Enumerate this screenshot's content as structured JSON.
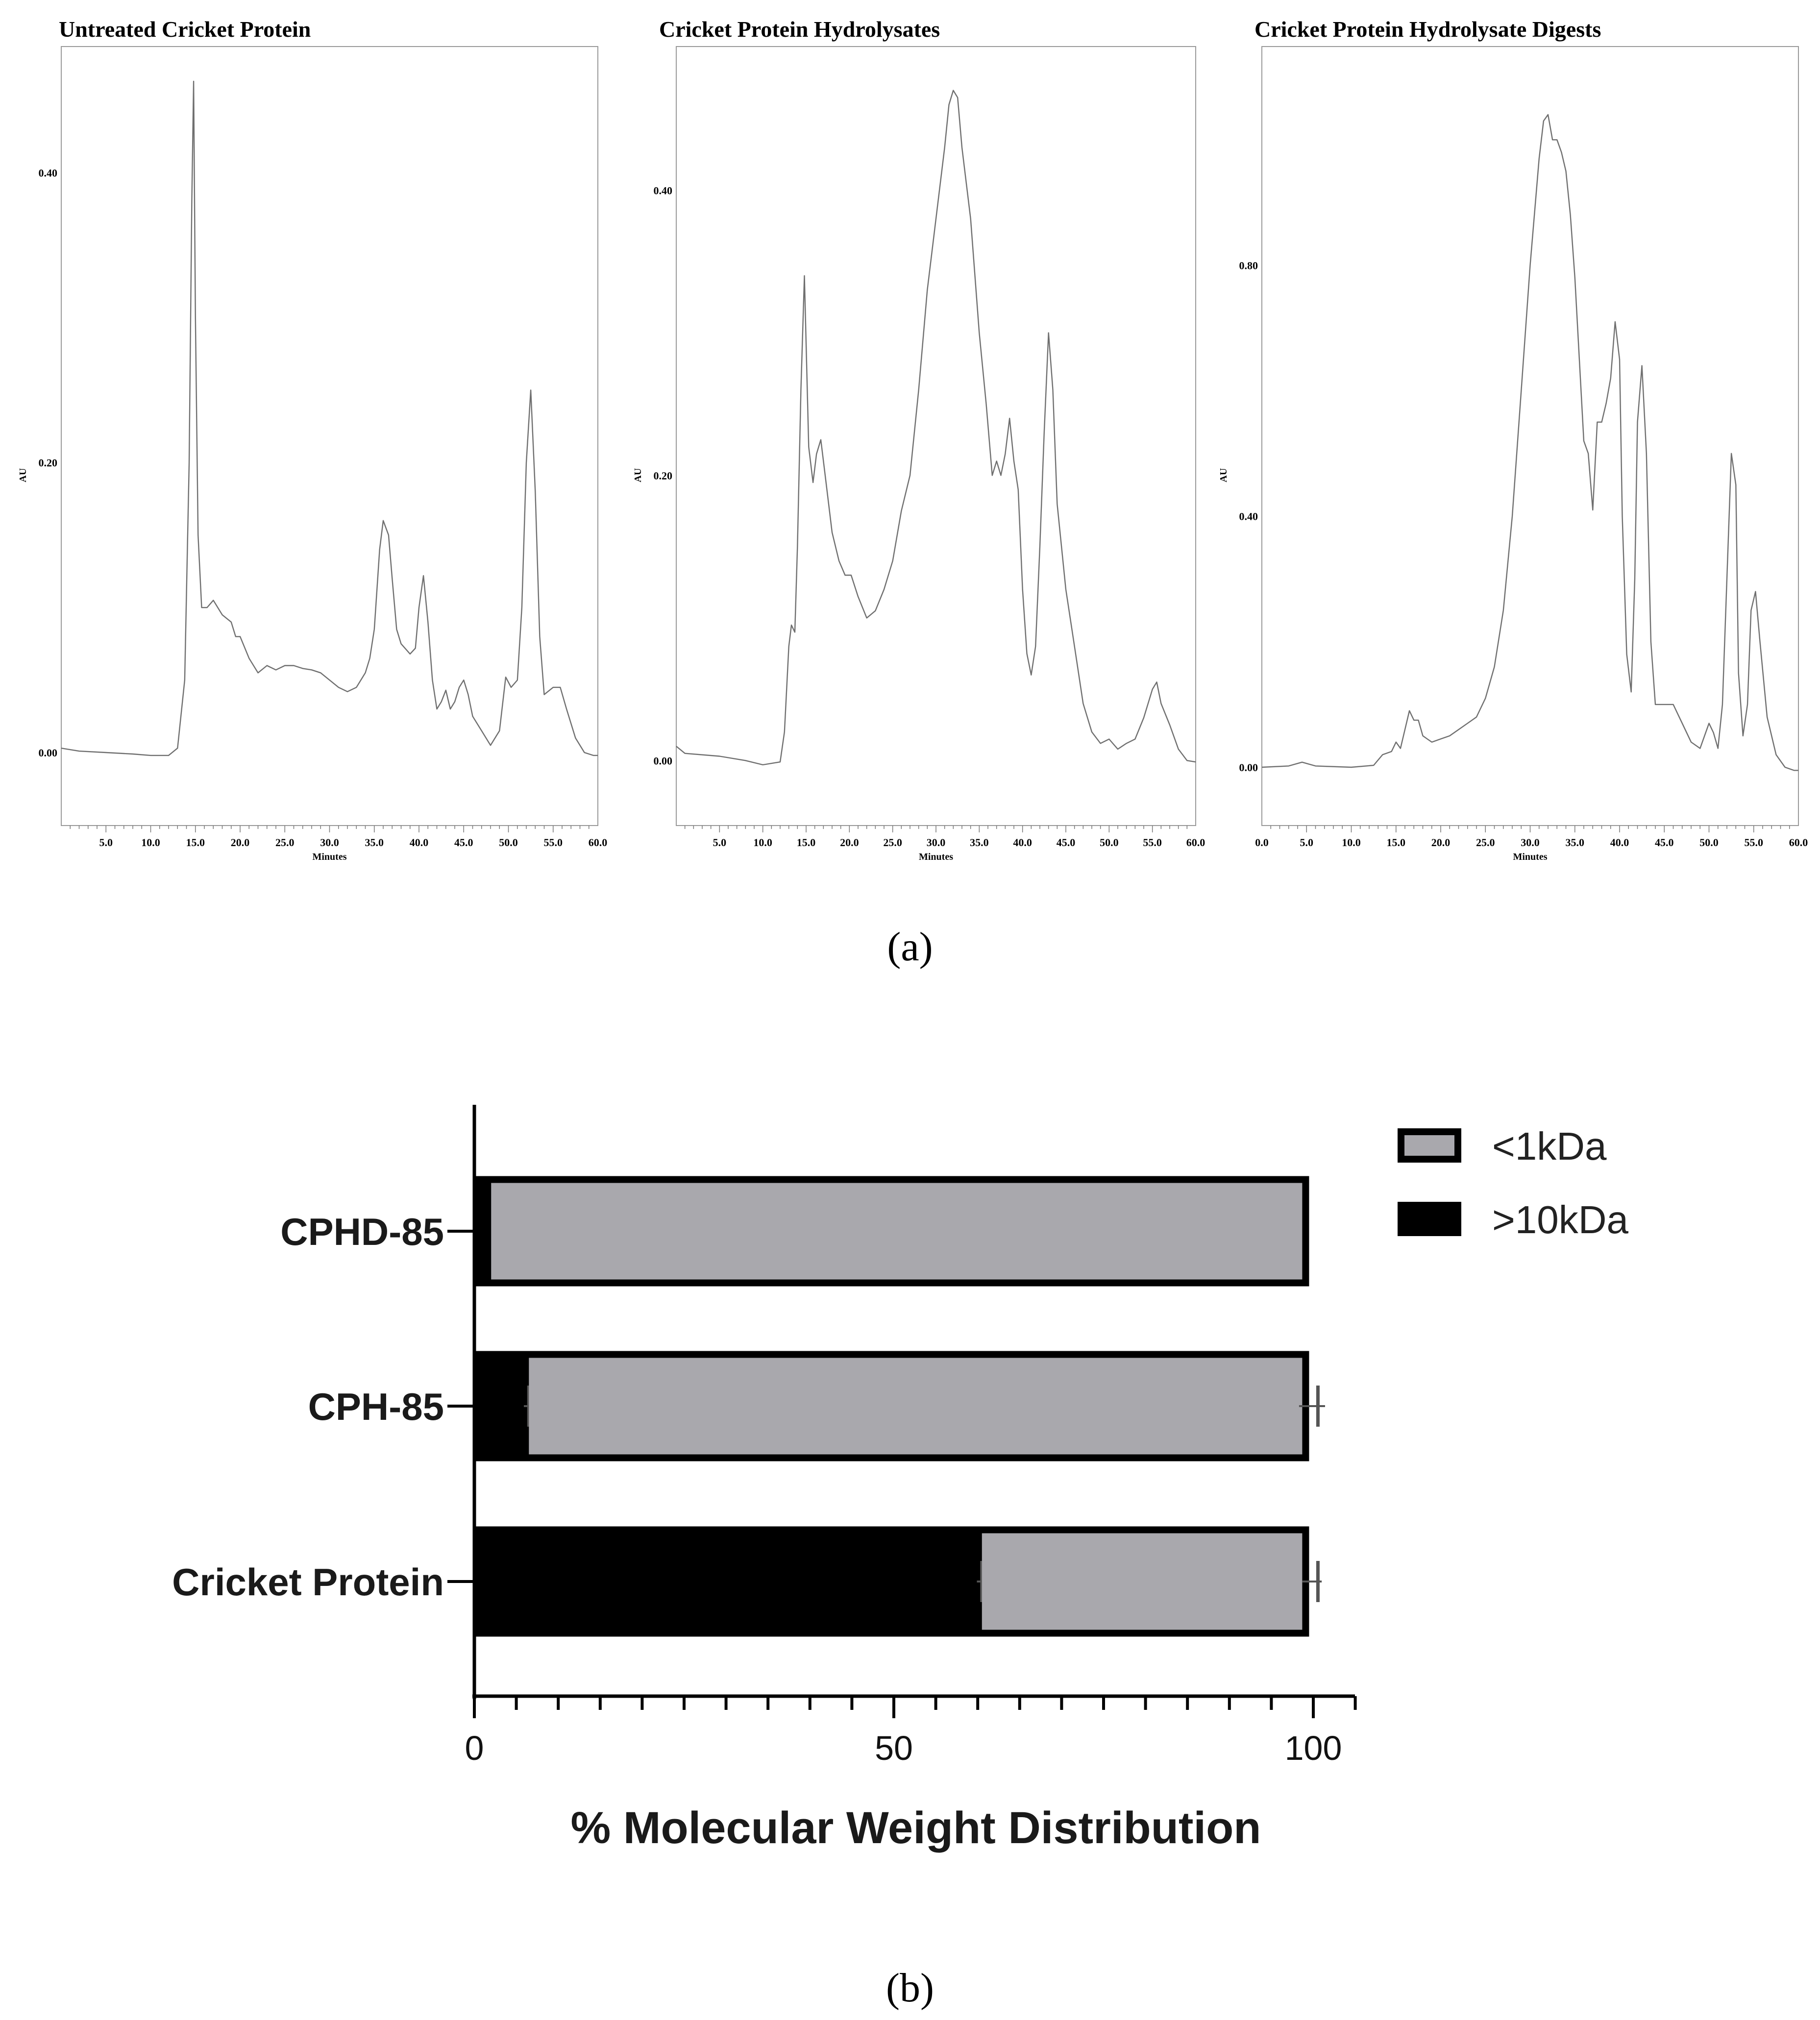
{
  "panel_labels": [
    "(a)",
    "(b)"
  ],
  "chart_data": [
    {
      "type": "line",
      "title": "Untreated Cricket Protein",
      "xlabel": "Minutes",
      "ylabel": "AU",
      "xlim": [
        0,
        60
      ],
      "ylim": [
        -0.025,
        0.465
      ],
      "x_ticks": [
        "5.0",
        "10.0",
        "15.0",
        "20.0",
        "25.0",
        "30.0",
        "35.0",
        "40.0",
        "45.0",
        "50.0",
        "55.0",
        "60.0"
      ],
      "y_ticks": [
        "0.00",
        "0.20",
        "0.40"
      ],
      "series": [
        {
          "x": [
            0,
            2,
            5,
            8,
            10,
            12,
            13,
            13.8,
            14.3,
            14.6,
            14.8,
            15.0,
            15.3,
            15.7,
            16.3,
            17,
            18,
            19,
            19.5,
            20,
            21,
            22,
            23,
            24,
            25,
            26,
            27,
            28,
            29,
            30,
            31,
            32,
            33,
            34,
            34.5,
            35,
            35.6,
            36,
            36.6,
            37,
            37.5,
            38,
            39,
            39.6,
            40,
            40.5,
            41,
            41.5,
            42,
            42.5,
            43,
            43.5,
            44,
            44.5,
            45,
            45.5,
            46,
            47,
            48,
            49,
            49.7,
            50.3,
            51,
            51.5,
            52,
            52.5,
            53,
            53.5,
            54,
            55,
            55.8,
            56.5,
            57.5,
            58.5,
            59.5,
            60
          ],
          "y": [
            0.003,
            0.001,
            0.0,
            -0.001,
            -0.002,
            -0.002,
            0.003,
            0.05,
            0.2,
            0.38,
            0.463,
            0.3,
            0.15,
            0.1,
            0.1,
            0.105,
            0.095,
            0.09,
            0.08,
            0.08,
            0.065,
            0.055,
            0.06,
            0.057,
            0.06,
            0.06,
            0.058,
            0.057,
            0.055,
            0.05,
            0.045,
            0.042,
            0.045,
            0.055,
            0.065,
            0.085,
            0.14,
            0.16,
            0.15,
            0.12,
            0.085,
            0.075,
            0.068,
            0.072,
            0.1,
            0.122,
            0.09,
            0.05,
            0.03,
            0.035,
            0.043,
            0.03,
            0.035,
            0.045,
            0.05,
            0.04,
            0.025,
            0.015,
            0.005,
            0.015,
            0.052,
            0.045,
            0.05,
            0.1,
            0.2,
            0.25,
            0.18,
            0.08,
            0.04,
            0.045,
            0.045,
            0.03,
            0.01,
            0.0,
            -0.002,
            -0.002
          ]
        }
      ]
    },
    {
      "type": "line",
      "title": "Cricket Protein Hydrolysates",
      "xlabel": "Minutes",
      "ylabel": "AU",
      "xlim": [
        0,
        60
      ],
      "ylim": [
        -0.025,
        0.475
      ],
      "x_ticks": [
        "5.0",
        "10.0",
        "15.0",
        "20.0",
        "25.0",
        "30.0",
        "35.0",
        "40.0",
        "45.0",
        "50.0",
        "55.0",
        "60.0"
      ],
      "y_ticks": [
        "0.00",
        "0.20",
        "0.40"
      ],
      "series": [
        {
          "x": [
            0,
            1,
            5,
            8,
            10,
            12,
            12.5,
            13,
            13.3,
            13.7,
            14,
            14.4,
            14.8,
            15.3,
            15.8,
            16.2,
            16.7,
            17.2,
            18,
            18.8,
            19.5,
            20.2,
            21,
            22,
            23,
            24,
            25,
            26,
            27,
            28,
            29,
            30,
            31,
            31.5,
            32,
            32.5,
            33,
            34,
            35,
            35.8,
            36.5,
            37,
            37.5,
            38,
            38.5,
            39,
            39.5,
            40,
            40.5,
            41,
            41.5,
            42,
            42.5,
            43,
            43.5,
            44,
            45,
            46,
            47,
            48,
            49,
            50,
            51,
            52,
            53,
            54,
            55,
            55.5,
            56,
            57,
            58,
            59,
            60
          ],
          "y": [
            0.01,
            0.005,
            0.003,
            0.0,
            -0.003,
            -0.001,
            0.02,
            0.08,
            0.095,
            0.09,
            0.15,
            0.26,
            0.34,
            0.22,
            0.195,
            0.215,
            0.225,
            0.2,
            0.16,
            0.14,
            0.13,
            0.13,
            0.115,
            0.1,
            0.105,
            0.12,
            0.14,
            0.175,
            0.2,
            0.26,
            0.33,
            0.38,
            0.43,
            0.46,
            0.47,
            0.465,
            0.43,
            0.38,
            0.3,
            0.25,
            0.2,
            0.21,
            0.2,
            0.215,
            0.24,
            0.21,
            0.19,
            0.12,
            0.075,
            0.06,
            0.08,
            0.15,
            0.23,
            0.3,
            0.26,
            0.18,
            0.12,
            0.08,
            0.04,
            0.02,
            0.012,
            0.015,
            0.008,
            0.012,
            0.015,
            0.03,
            0.05,
            0.055,
            0.04,
            0.025,
            0.008,
            0.0,
            -0.001
          ]
        }
      ]
    },
    {
      "type": "line",
      "title": "Cricket Protein Hydrolysate Digests",
      "xlabel": "Minutes",
      "ylabel": "AU",
      "xlim": [
        0,
        60
      ],
      "ylim": [
        -0.05,
        1.09
      ],
      "x_ticks": [
        "0.0",
        "5.0",
        "10.0",
        "15.0",
        "20.0",
        "25.0",
        "30.0",
        "35.0",
        "40.0",
        "45.0",
        "50.0",
        "55.0",
        "60.0"
      ],
      "y_ticks": [
        "0.00",
        "0.40",
        "0.80"
      ],
      "series": [
        {
          "x": [
            0,
            3,
            4.5,
            6,
            10,
            12.5,
            13.5,
            14.5,
            15,
            15.5,
            16,
            16.5,
            17,
            17.5,
            18,
            18.5,
            19,
            20,
            21,
            22,
            23,
            24,
            25,
            26,
            27,
            28,
            29,
            30,
            31,
            31.5,
            32,
            32.5,
            33,
            33.5,
            34,
            34.5,
            35,
            35.5,
            36,
            36.5,
            37,
            37.5,
            38,
            38.5,
            39,
            39.5,
            40,
            40.3,
            40.8,
            41.3,
            41.7,
            42,
            42.5,
            43,
            43.5,
            44,
            45,
            46,
            47,
            48,
            49,
            50,
            50.5,
            51,
            51.5,
            52,
            52.5,
            53,
            53.3,
            53.8,
            54.3,
            54.7,
            55.2,
            55.7,
            56.5,
            57.5,
            58.5,
            59.5,
            60
          ],
          "y": [
            0.0,
            0.002,
            0.008,
            0.002,
            0.0,
            0.003,
            0.02,
            0.025,
            0.04,
            0.03,
            0.06,
            0.09,
            0.075,
            0.075,
            0.05,
            0.045,
            0.04,
            0.045,
            0.05,
            0.06,
            0.07,
            0.08,
            0.11,
            0.16,
            0.25,
            0.4,
            0.6,
            0.8,
            0.97,
            1.03,
            1.04,
            1.0,
            1.0,
            0.98,
            0.95,
            0.88,
            0.78,
            0.65,
            0.52,
            0.5,
            0.41,
            0.55,
            0.55,
            0.58,
            0.62,
            0.71,
            0.65,
            0.4,
            0.18,
            0.12,
            0.3,
            0.55,
            0.64,
            0.5,
            0.2,
            0.1,
            0.1,
            0.1,
            0.07,
            0.04,
            0.03,
            0.07,
            0.055,
            0.03,
            0.1,
            0.3,
            0.5,
            0.45,
            0.15,
            0.05,
            0.1,
            0.25,
            0.28,
            0.2,
            0.08,
            0.02,
            0.0,
            -0.005,
            -0.005
          ]
        }
      ]
    },
    {
      "type": "bar",
      "orientation": "horizontal",
      "stacked": true,
      "categories": [
        "CPHD-85",
        "CPH-85",
        "Cricket Protein"
      ],
      "series": [
        {
          "name": ">10kDa",
          "values": [
            2,
            6.5,
            60.5
          ],
          "errors": [
            0,
            0.6,
            0.6
          ],
          "color": "#000000"
        },
        {
          "name": "<1kDa",
          "values": [
            97.5,
            93,
            39
          ],
          "errors": [
            0,
            1.2,
            0.8
          ],
          "color": "#a9a8ad"
        }
      ],
      "xlabel": "% Molecular Weight Distribution",
      "ylabel": "",
      "xlim": [
        0,
        105
      ],
      "x_ticks": [
        0,
        50,
        100
      ],
      "legend": {
        "position": "top-right",
        "order": [
          "<1kDa",
          ">10kDa"
        ]
      }
    }
  ]
}
